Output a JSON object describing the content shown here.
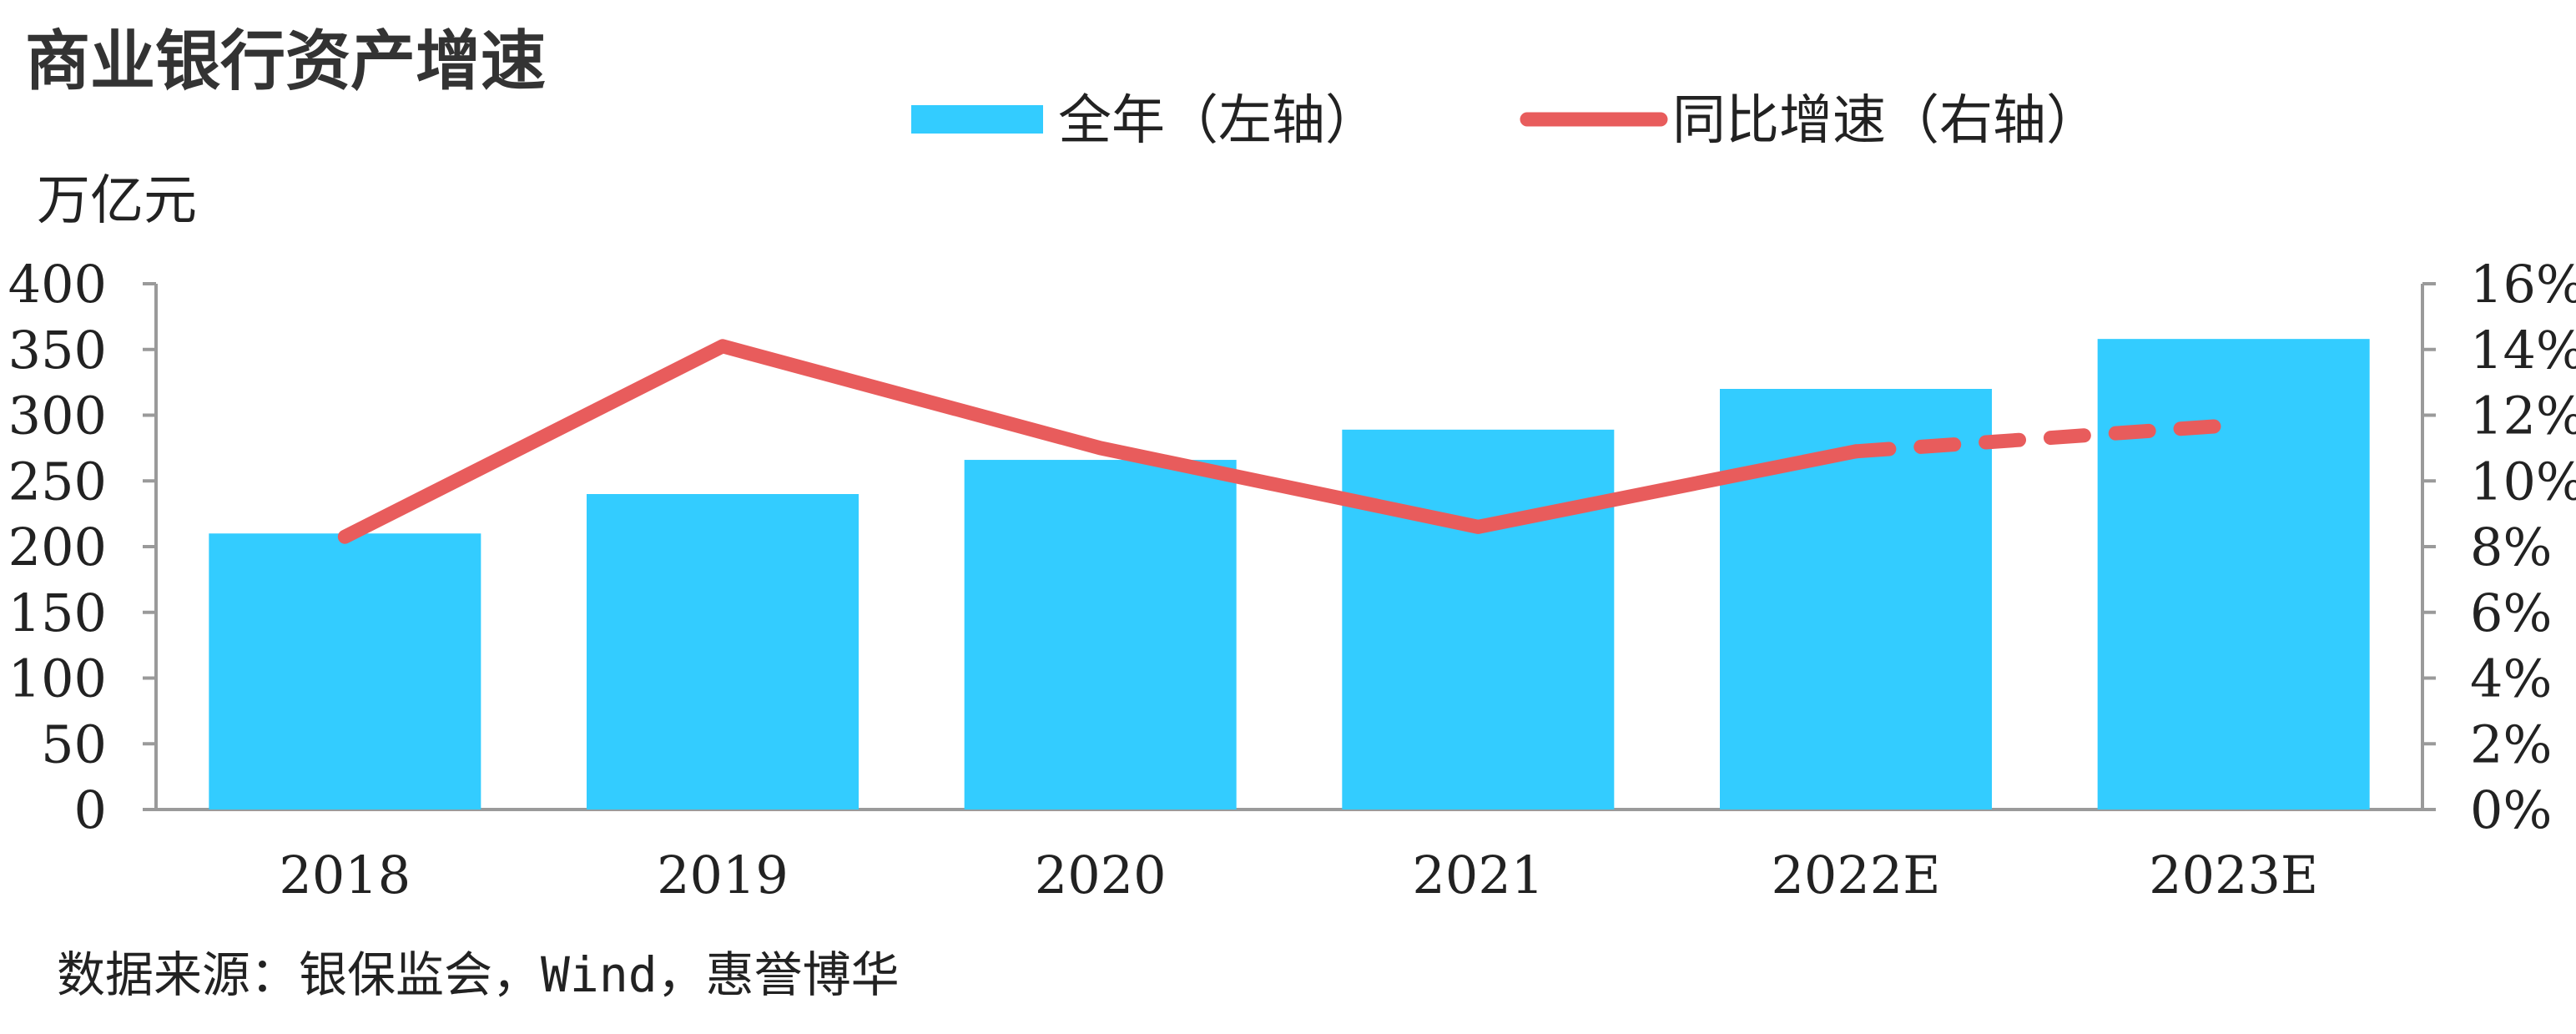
{
  "chart_data": {
    "type": "bar",
    "title": "商业银行资产增速",
    "ylabel_left": "万亿元",
    "categories": [
      "2018",
      "2019",
      "2020",
      "2021",
      "2022E",
      "2023E"
    ],
    "series": [
      {
        "name": "全年（左轴）",
        "type": "bar",
        "axis": "left",
        "color": "#33CCFF",
        "values": [
          210,
          240,
          266,
          289,
          320,
          358
        ]
      },
      {
        "name": "同比增速（右轴）",
        "type": "line",
        "axis": "right",
        "color": "#E85C5C",
        "values": [
          8.3,
          14.1,
          11.0,
          8.6,
          10.9,
          11.7
        ],
        "dashed_from_index": 4
      }
    ],
    "y_left": {
      "min": 0,
      "max": 400,
      "ticks": [
        "0",
        "50",
        "100",
        "150",
        "200",
        "250",
        "300",
        "350",
        "400"
      ]
    },
    "y_right": {
      "min": 0,
      "max": 16,
      "ticks": [
        "0%",
        "2%",
        "4%",
        "6%",
        "8%",
        "10%",
        "12%",
        "14%",
        "16%"
      ]
    },
    "legend_position": "top",
    "grid": false
  },
  "source": "数据来源：银保监会，Wind，惠誉博华"
}
